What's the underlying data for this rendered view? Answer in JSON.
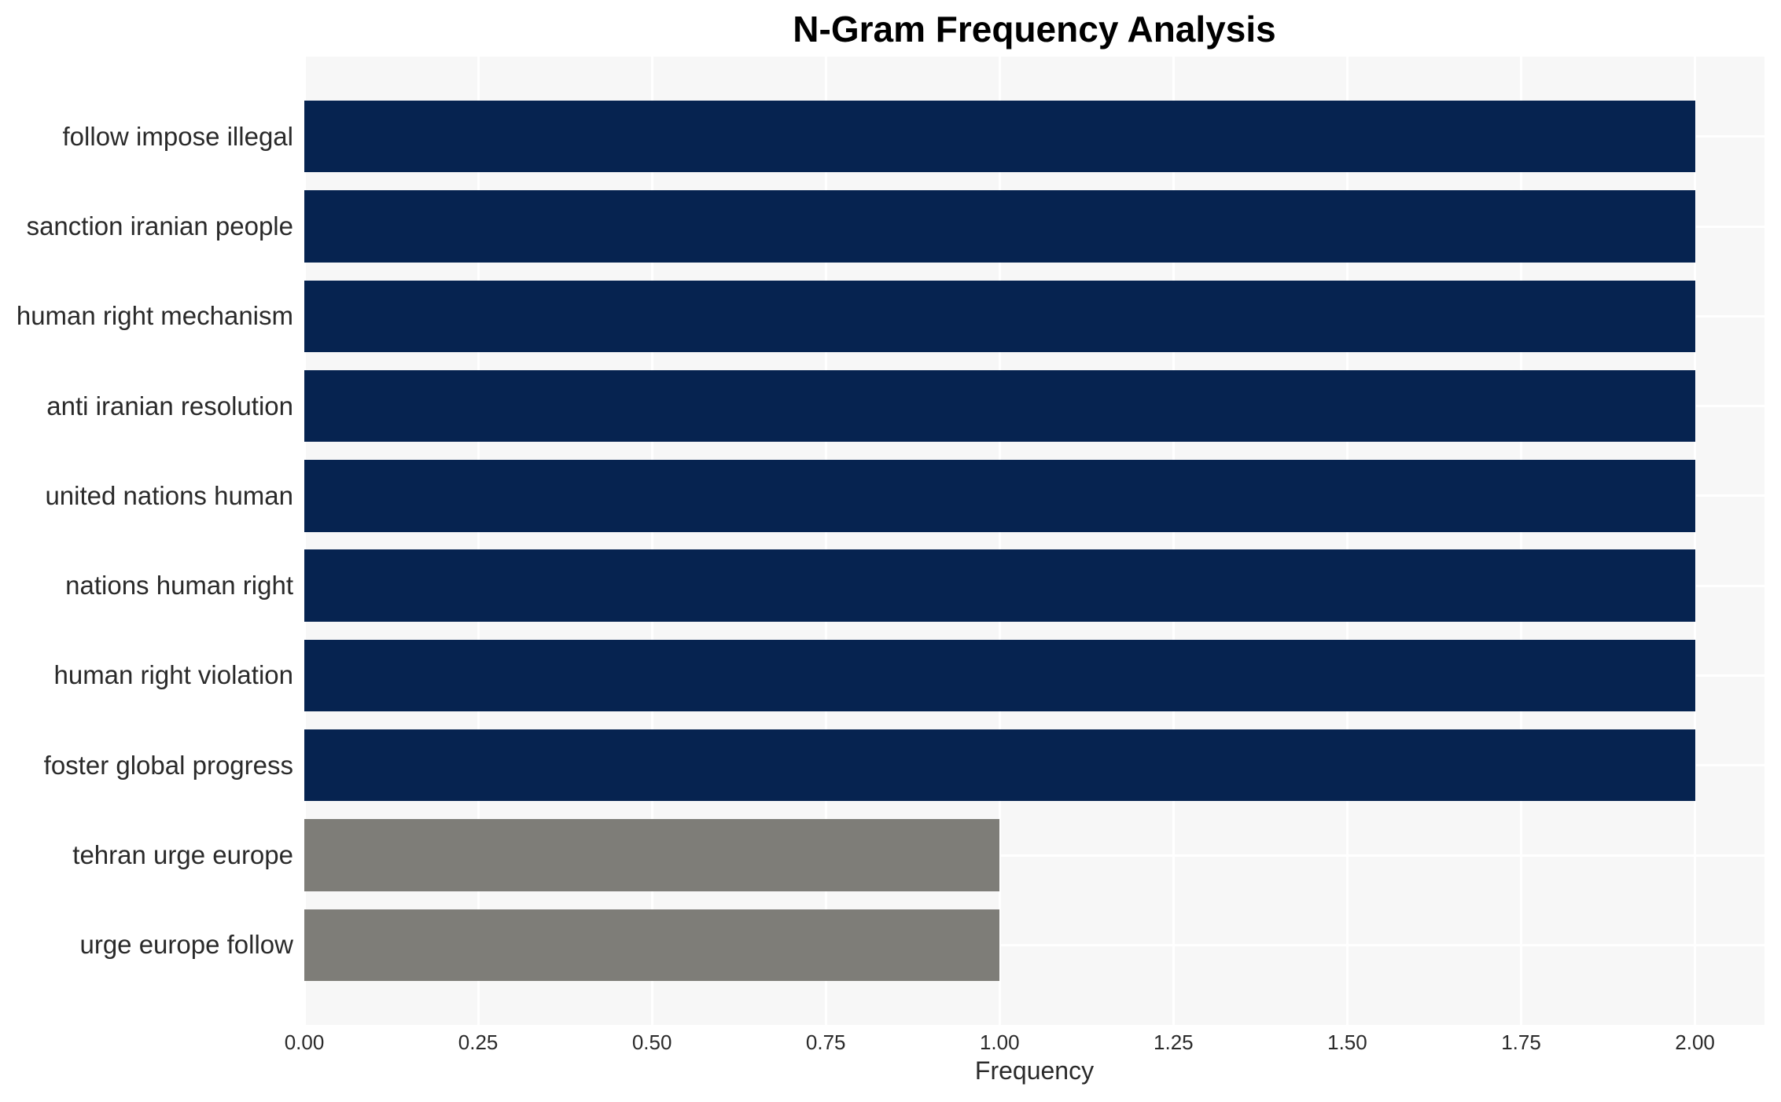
{
  "title": "N-Gram Frequency Analysis",
  "chart_data": {
    "type": "bar",
    "orientation": "horizontal",
    "title": "N-Gram Frequency Analysis",
    "categories": [
      "follow impose illegal",
      "sanction iranian people",
      "human right mechanism",
      "anti iranian resolution",
      "united nations human",
      "nations human right",
      "human right violation",
      "foster global progress",
      "tehran urge europe",
      "urge europe follow"
    ],
    "values": [
      2,
      2,
      2,
      2,
      2,
      2,
      2,
      2,
      1,
      1
    ],
    "bar_colors": [
      "#062350",
      "#062350",
      "#062350",
      "#062350",
      "#062350",
      "#062350",
      "#062350",
      "#062350",
      "#7e7d78",
      "#7e7d78"
    ],
    "xlabel": "Frequency",
    "ylabel": "",
    "xlim": [
      0,
      2.1
    ],
    "xticks": [
      "0.00",
      "0.25",
      "0.50",
      "0.75",
      "1.00",
      "1.25",
      "1.50",
      "1.75",
      "2.00"
    ],
    "xtick_values": [
      0,
      0.25,
      0.5,
      0.75,
      1.0,
      1.25,
      1.5,
      1.75,
      2.0
    ],
    "grid": true,
    "grid_color": "#ffffff",
    "plot_background": "#f7f7f7",
    "figure_background": "#ffffff",
    "legend": false,
    "bar_height_fraction": 0.8
  },
  "colors": {
    "navy_bar": "#062350",
    "gray_bar": "#7e7d78",
    "text": "#2a2a2a",
    "title_text": "#000000"
  }
}
